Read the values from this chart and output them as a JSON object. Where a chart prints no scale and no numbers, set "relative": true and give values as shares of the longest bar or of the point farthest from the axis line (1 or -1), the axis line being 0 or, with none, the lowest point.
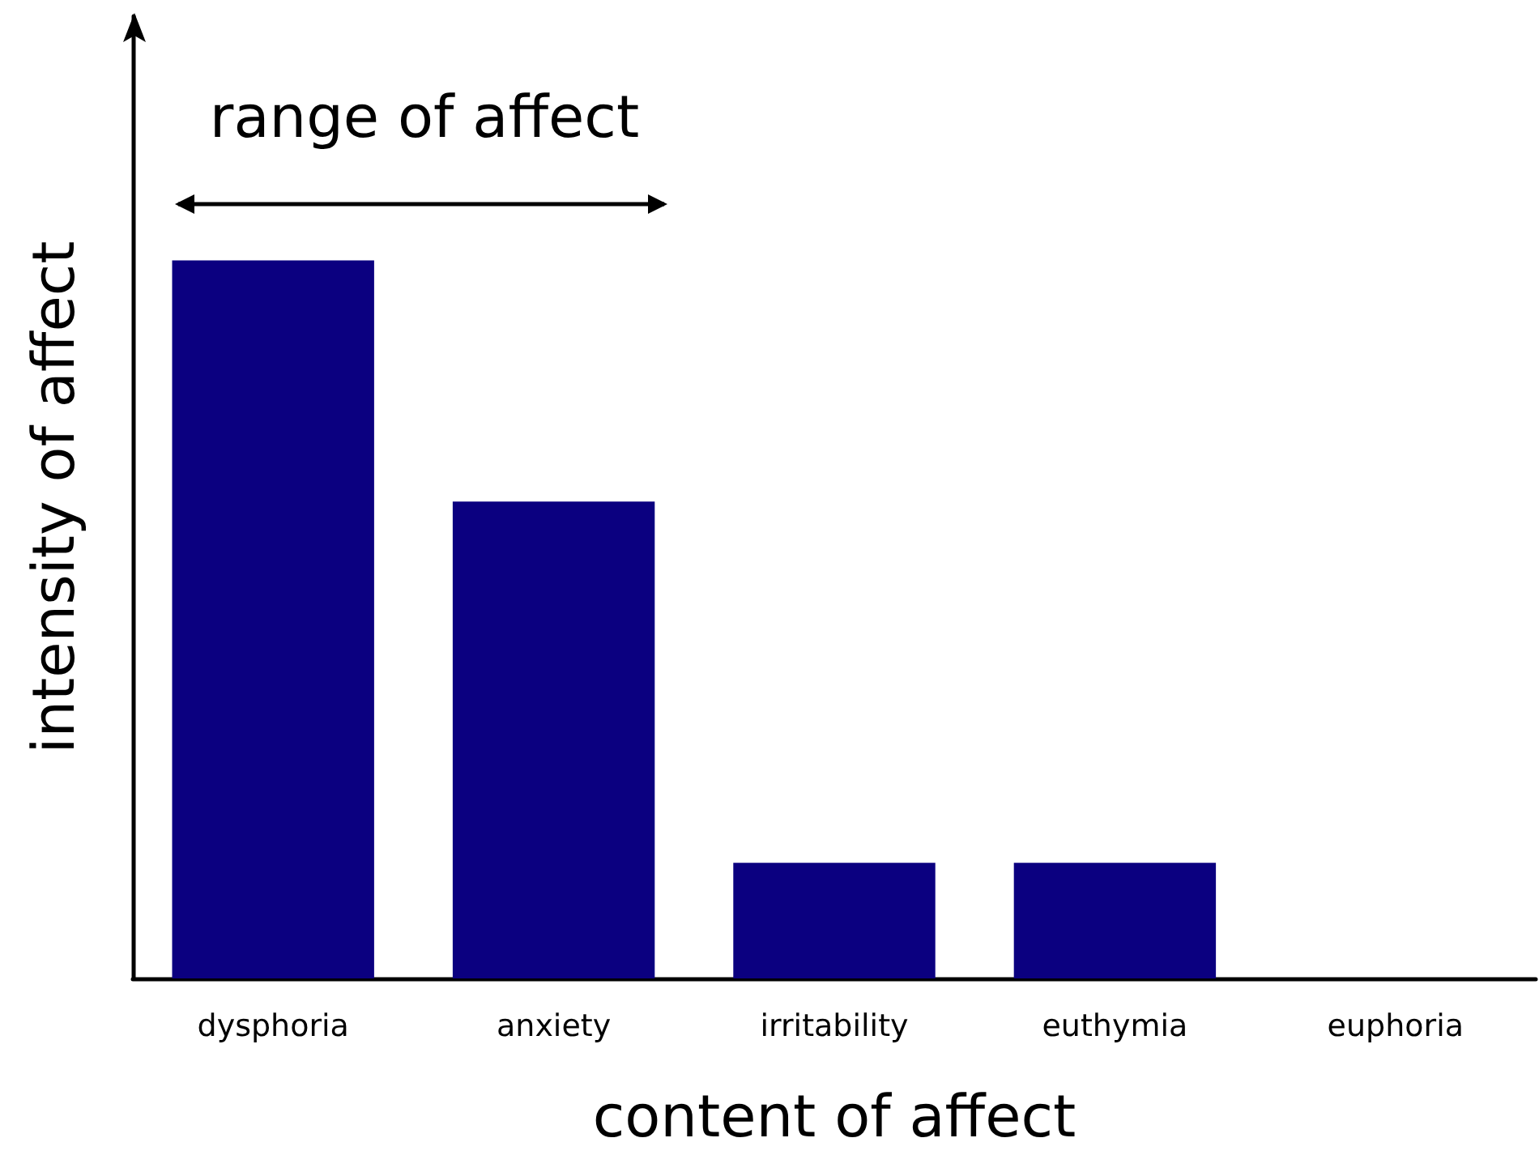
{
  "chart_data": {
    "type": "bar",
    "relative": true,
    "xlabel": "content of affect",
    "ylabel": "intensity of affect",
    "annotations": [
      "range of affect"
    ],
    "categories": [
      "dysphoria",
      "anxiety",
      "irritability",
      "euthymia",
      "euphoria"
    ],
    "values": [
      1,
      0.664,
      0.161,
      0.161,
      0
    ],
    "color": "#0b0080",
    "grid": false
  }
}
